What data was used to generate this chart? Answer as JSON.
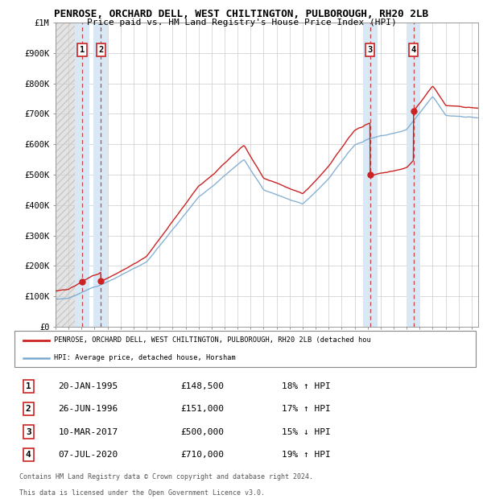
{
  "title_line1": "PENROSE, ORCHARD DELL, WEST CHILTINGTON, PULBOROUGH, RH20 2LB",
  "title_line2": "Price paid vs. HM Land Registry's House Price Index (HPI)",
  "ylim": [
    0,
    1000000
  ],
  "yticks": [
    0,
    100000,
    200000,
    300000,
    400000,
    500000,
    600000,
    700000,
    800000,
    900000,
    1000000
  ],
  "ytick_labels": [
    "£0",
    "£100K",
    "£200K",
    "£300K",
    "£400K",
    "£500K",
    "£600K",
    "£700K",
    "£800K",
    "£900K",
    "£1M"
  ],
  "xlim_start": 1993.0,
  "xlim_end": 2025.5,
  "sale_dates": [
    1995.05,
    1996.49,
    2017.19,
    2020.52
  ],
  "sale_prices": [
    148500,
    151000,
    500000,
    710000
  ],
  "sale_label_line1": "PENROSE, ORCHARD DELL, WEST CHILTINGTON, PULBOROUGH, RH20 2LB (detached hou",
  "hpi_label": "HPI: Average price, detached house, Horsham",
  "transaction_labels": [
    {
      "num": "1",
      "date": "20-JAN-1995",
      "price": "£148,500",
      "hpi": "18% ↑ HPI"
    },
    {
      "num": "2",
      "date": "26-JUN-1996",
      "price": "£151,000",
      "hpi": "17% ↑ HPI"
    },
    {
      "num": "3",
      "date": "10-MAR-2017",
      "price": "£500,000",
      "hpi": "15% ↓ HPI"
    },
    {
      "num": "4",
      "date": "07-JUL-2020",
      "price": "£710,000",
      "hpi": "19% ↑ HPI"
    }
  ],
  "footer_line1": "Contains HM Land Registry data © Crown copyright and database right 2024.",
  "footer_line2": "This data is licensed under the Open Government Licence v3.0.",
  "red_line_color": "#cc2222",
  "blue_line_color": "#7aaad0",
  "bg_color": "#ffffff",
  "sale_vline_color": "#cc2222",
  "sale_highlight_color": "#d8e8f5",
  "hatch_area_color": "#e0e0e0"
}
